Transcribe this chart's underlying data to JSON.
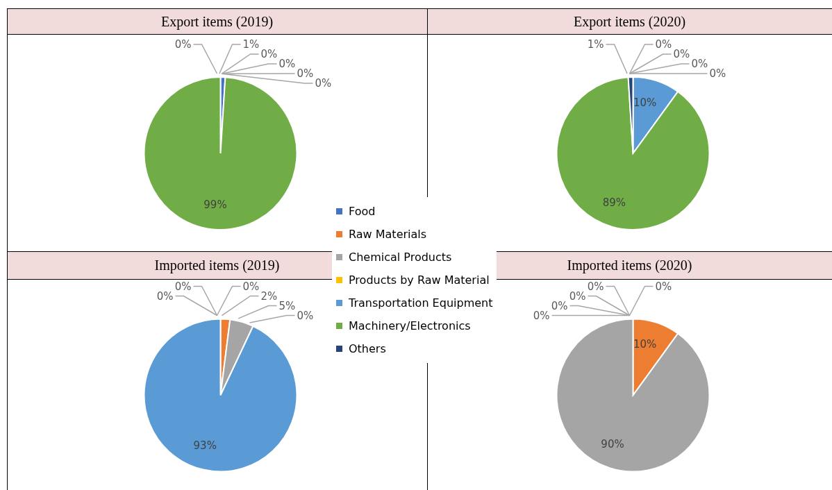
{
  "chart_data": [
    {
      "type": "pie",
      "title": "Export items (2019)",
      "categories": [
        "Food",
        "Raw Materials",
        "Chemical Products",
        "Products by Raw Material",
        "Transportation Equipment",
        "Machinery/Electronics",
        "Others"
      ],
      "values": [
        1,
        0,
        0,
        0,
        0,
        99,
        0
      ],
      "colors": [
        "#4472c4",
        "#ed7d31",
        "#a5a5a5",
        "#ffc000",
        "#5b9bd5",
        "#70ad47",
        "#264478"
      ],
      "value_labels": [
        "1%",
        "0%",
        "0%",
        "0%",
        "0%",
        "99%",
        "0%"
      ],
      "legend": "bottom right"
    },
    {
      "type": "pie",
      "title": "Export items (2020)",
      "categories": [
        null,
        null,
        null,
        null,
        null,
        null,
        null
      ],
      "values": [
        0,
        0,
        0,
        0,
        10,
        89,
        1
      ],
      "colors": [
        "#4472c4",
        "#ed7d31",
        "#a5a5a5",
        "#ffc000",
        "#5b9bd5",
        "#70ad47",
        "#264478"
      ],
      "value_labels": [
        "0%",
        "0%",
        "0%",
        "0%",
        "10%",
        "89%",
        "1%"
      ]
    },
    {
      "type": "pie",
      "title": "Imported items (2019)",
      "categories": [
        null,
        null,
        null,
        null,
        null,
        null,
        null
      ],
      "values": [
        0,
        2,
        5,
        0,
        93,
        0,
        0
      ],
      "colors": [
        "#4472c4",
        "#ed7d31",
        "#a5a5a5",
        "#ffc000",
        "#5b9bd5",
        "#70ad47",
        "#264478"
      ],
      "value_labels": [
        "0%",
        "2%",
        "5%",
        "0%",
        "93%",
        "0%",
        "0%"
      ]
    },
    {
      "type": "pie",
      "title": "Imported items (2020)",
      "categories": [
        null,
        null,
        null,
        null,
        null,
        null,
        null
      ],
      "values": [
        0,
        10,
        90,
        0,
        0,
        0,
        0
      ],
      "colors": [
        "#4472c4",
        "#ed7d31",
        "#a5a5a5",
        "#ffc000",
        "#5b9bd5",
        "#70ad47",
        "#264478"
      ],
      "value_labels": [
        "0%",
        "10%",
        "90%",
        "0%",
        "0%",
        "0%",
        "0%"
      ]
    }
  ]
}
